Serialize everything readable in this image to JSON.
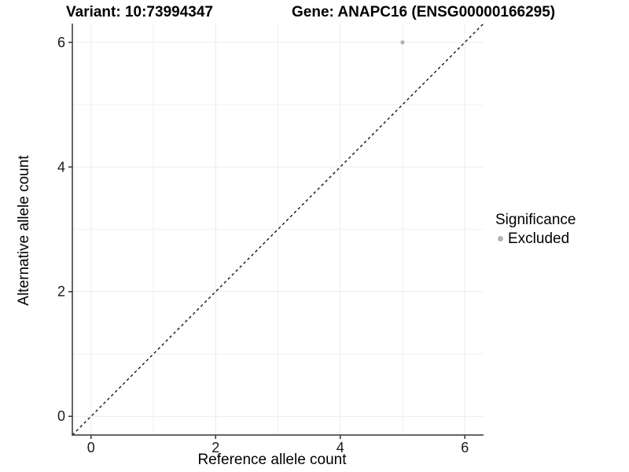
{
  "titles": {
    "variant": "Variant: 10:73994347",
    "gene": "Gene: ANAPC16 (ENSG00000166295)"
  },
  "legend": {
    "title": "Significance",
    "items": [
      {
        "label": "Excluded",
        "color": "#b3b3b3"
      }
    ]
  },
  "chart_data": {
    "type": "scatter",
    "title": "Variant: 10:73994347 — Gene: ANAPC16 (ENSG00000166295)",
    "xlabel": "Reference allele count",
    "ylabel": "Alternative allele count",
    "xlim": [
      -0.3,
      6.3
    ],
    "ylim": [
      -0.3,
      6.3
    ],
    "xticks": [
      0,
      2,
      4,
      6
    ],
    "yticks": [
      0,
      2,
      4,
      6
    ],
    "x_minor": [
      1,
      3,
      5
    ],
    "y_minor": [
      1,
      3,
      5
    ],
    "grid": true,
    "legend_position": "right",
    "series": [
      {
        "name": "Excluded",
        "color": "#b3b3b3",
        "points": [
          {
            "x": 5,
            "y": 6
          }
        ]
      }
    ],
    "reference_line": {
      "type": "identity y=x",
      "style": "dashed",
      "from": {
        "x": -0.3,
        "y": -0.3
      },
      "to": {
        "x": 6.3,
        "y": 6.3
      }
    },
    "colors": {
      "background": "#ffffff",
      "grid_major": "#ebebeb",
      "grid_minor": "#f1f1f1",
      "axis": "#333333",
      "tick_label": "#1a1a1a",
      "reference_line": "#000000",
      "point": "#b3b3b3"
    }
  }
}
